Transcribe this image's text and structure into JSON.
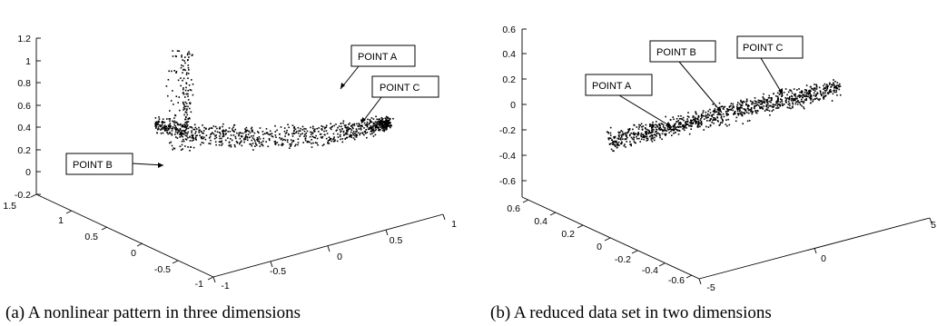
{
  "chart_data": [
    {
      "type": "scatter",
      "dimensions": 3,
      "caption": "(a) A nonlinear pattern in three dimensions",
      "title": "",
      "xlabel": "",
      "ylabel": "",
      "zlabel": "",
      "xlim": [
        -1,
        1
      ],
      "ylim": [
        -1,
        1.5
      ],
      "zlim": [
        -0.2,
        1.2
      ],
      "x_ticks": [
        "-1",
        "-0.5",
        "0",
        "0.5",
        "1"
      ],
      "y_ticks": [
        "-1",
        "-0.5",
        "0",
        "0.5",
        "1",
        "1.5"
      ],
      "z_ticks": [
        "-0.2",
        "0",
        "0.2",
        "0.4",
        "0.6",
        "0.8",
        "1",
        "1.2"
      ],
      "point_count": 1000,
      "annotations": [
        {
          "label": "POINT A",
          "x": 0.65,
          "y": 0.45,
          "z": 0.62
        },
        {
          "label": "POINT B",
          "x": 0.95,
          "y": -0.9,
          "z": 0.02
        },
        {
          "label": "POINT C",
          "x": 0.92,
          "y": 0.45,
          "z": 0.34
        }
      ],
      "grid": false,
      "legend": "none"
    },
    {
      "type": "scatter",
      "dimensions": 3,
      "caption": "(b) A reduced data set in two dimensions",
      "title": "",
      "xlabel": "",
      "ylabel": "",
      "zlabel": "",
      "xlim": [
        -5,
        5
      ],
      "ylim": [
        -0.7,
        0.7
      ],
      "zlim": [
        -0.7,
        0.7
      ],
      "x_ticks": [
        "-5",
        "0",
        "5"
      ],
      "y_ticks": [
        "-0.6",
        "-0.4",
        "-0.2",
        "0",
        "0.2",
        "0.4",
        "0.6"
      ],
      "z_ticks": [
        "-0.6",
        "-0.4",
        "-0.2",
        "0",
        "0.2",
        "0.4",
        "0.6"
      ],
      "point_count": 1000,
      "annotations": [
        {
          "label": "POINT A",
          "x": -2.5,
          "y": -0.1,
          "z": -0.05
        },
        {
          "label": "POINT B",
          "x": 0.2,
          "y": 0.0,
          "z": 0.05
        },
        {
          "label": "POINT C",
          "x": 2.5,
          "y": 0.05,
          "z": 0.12
        }
      ],
      "grid": false,
      "legend": "none"
    }
  ]
}
